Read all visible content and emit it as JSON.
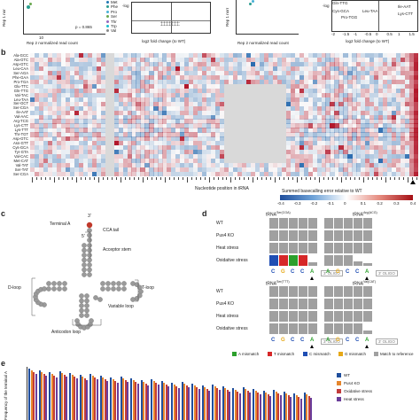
{
  "panel_a": {
    "ylabel_left": "Rep 1 nor",
    "xlabel_left": "Rep 2 normalized read count",
    "p_value_left": "p = 0.865",
    "tick_left": "10",
    "legend": [
      "Met",
      "Phe",
      "Pro",
      "Ser",
      "Thr",
      "Trp",
      "Val"
    ],
    "xlabel_mid": "log2 fold change (to WT)",
    "ylabel_mid": "-log"
  },
  "panel_a2": {
    "ylabel_left": "Rep 1 norr",
    "xlabel_left": "Rep 2 normalized read count",
    "xlabel_mid": "log2 fold change (to WT)",
    "ylabel_mid": "-log",
    "ticks_mid": [
      "-2",
      "-1.5",
      "-1",
      "-0.5",
      "0",
      "0.5",
      "1",
      "1.5"
    ],
    "annotations": [
      "Gln-TTG",
      "Cys-GCA",
      "Leu-TAA",
      "Pro-TGG",
      "Ile-AAT",
      "Lys-CTT"
    ]
  },
  "panel_b": {
    "letter": "b",
    "rows": [
      "Ala-GCC",
      "Ala-GTC",
      "Asp-GTC",
      "Leu-CAA",
      "Ser-AGA",
      "Phe-GAA",
      "Pro-TGA",
      "Glu-TTC",
      "Gln-TTG",
      "Val-TAC",
      "Leu-TAA",
      "Ser-GCT",
      "Ser-CGA",
      "Ile-AAT",
      "Val-AAC",
      "Arg-TCG",
      "Lys-CTT",
      "Lys-TTT",
      "Thr-TGT",
      "Asp-GTC",
      "Asn-GTT",
      "Cys-GCA",
      "Tyr-GTA",
      "Val-CAC",
      "Met-CAT",
      "Val-TAT",
      "Ser-TAT",
      "Ser-CGA"
    ],
    "xlabel": "Nucleotide position in tRNA",
    "colorbar_title": "Summed basecalling error relative to WT",
    "colorbar_ticks": [
      "-0.4",
      "-0.3",
      "-0.2",
      "-0.1",
      "0",
      "0.1",
      "0.2",
      "0.3",
      "0.4"
    ],
    "colors": {
      "neg": "#2b6cb0",
      "pos": "#b2182b",
      "mid": "#ffffff",
      "gap": "#d9d9d9"
    }
  },
  "panel_c": {
    "letter": "c",
    "labels": {
      "terminal_a": "Terminal A",
      "three_prime": "3'",
      "five_prime": "5'",
      "cca_tail": "CCA tail",
      "acceptor_stem": "Acceptor stem",
      "d_loop": "D-loop",
      "t_loop": "T-loop",
      "variable_loop": "Variable loop",
      "anticodon_loop": "Anticodon loop"
    }
  },
  "panel_d": {
    "letter": "d",
    "top_left_title": "tRNA",
    "top_left_sup": "Ser(CGA)",
    "top_right_title": "tRNA",
    "top_right_sup": "Arg(ACG)",
    "bottom_left_sup": "Ser(TTT)",
    "bottom_right_sup": "Val(CAT)",
    "conditions": [
      "WT",
      "Pus4 KO",
      "Heat stress",
      "Oxidative stress"
    ],
    "bases_left": [
      "C",
      "G",
      "C",
      "C",
      "A"
    ],
    "bases_right": [
      "A",
      "G",
      "C",
      "C",
      "A"
    ],
    "oligo": "3' OLIGO",
    "legend": [
      {
        "label": "A mismatch",
        "color": "#2ca02c"
      },
      {
        "label": "T mismatch",
        "color": "#d62728"
      },
      {
        "label": "C mismatch",
        "color": "#1f4eb4"
      },
      {
        "label": "G mismatch",
        "color": "#e6a817"
      },
      {
        "label": "Match to reference",
        "color": "#a0a0a0"
      }
    ],
    "base_colors": {
      "A": "#2ca02c",
      "C": "#1f4eb4",
      "G": "#e6a817"
    }
  },
  "panel_e": {
    "letter": "e",
    "ylabel": "Frequency of the terminal A",
    "legend": [
      {
        "label": "WT",
        "color": "#1f4e9c"
      },
      {
        "label": "Pus4 KO",
        "color": "#e6862c"
      },
      {
        "label": "Oxidative stress",
        "color": "#c23b3b"
      },
      {
        "label": "Heat stress",
        "color": "#6a3d9a"
      }
    ]
  }
}
